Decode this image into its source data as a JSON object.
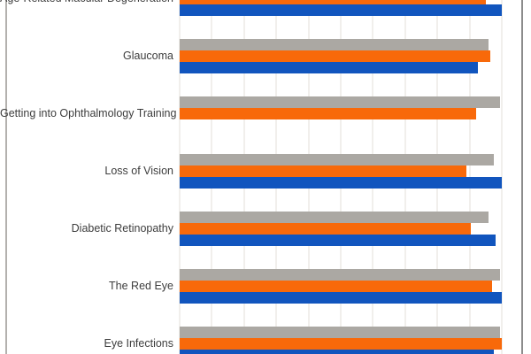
{
  "chart_data": {
    "type": "bar",
    "orientation": "horizontal",
    "title": "",
    "xlabel": "",
    "ylabel": "",
    "xlim": [
      0,
      100
    ],
    "gridline_step": 10,
    "grid": "vertical-only",
    "legend": "not visible (view cropped top and bottom)",
    "categories": [
      "Age-Related Macular Degeneration",
      "Glaucoma",
      "Getting into Ophthalmology Training",
      "Loss of Vision",
      "Diabetic Retinopathy",
      "The Red Eye",
      "Eye Infections"
    ],
    "series": [
      {
        "name": "gray",
        "color": "#ABA8A3",
        "values": [
          null,
          96,
          99.5,
          97.5,
          96,
          99.5,
          99.5
        ]
      },
      {
        "name": "orange",
        "color": "#F8690A",
        "values": [
          95,
          96.5,
          92,
          89,
          90.5,
          97,
          100
        ]
      },
      {
        "name": "blue",
        "color": "#1155BE",
        "values": [
          100,
          92.5,
          0,
          100,
          98,
          100,
          97.5
        ]
      }
    ],
    "note": "Values estimated from unlabeled gridlines (10-unit spacing assumed). First category's gray bar and axis labels fall outside the visible cropped area; 'blue' has no bar for 'Getting into Ophthalmology Training'."
  },
  "style": {
    "label_color": "#3d3d3d",
    "gridline_color": "#f1efec",
    "left_border_color": "#b3b1ae",
    "right_border_color": "#8c8c8c",
    "background": "#ffffff"
  }
}
